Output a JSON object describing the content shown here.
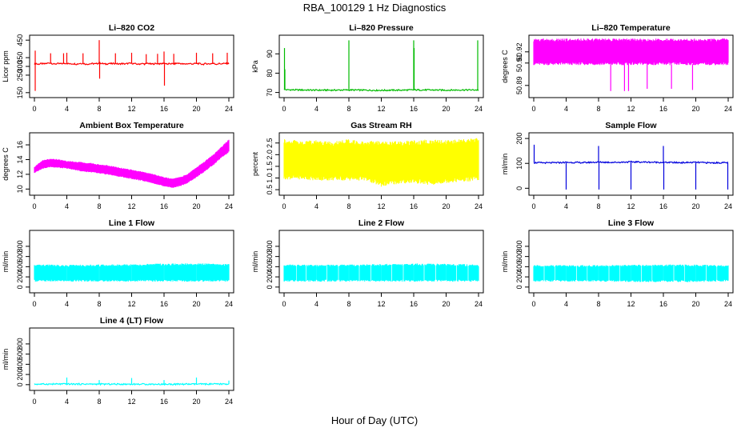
{
  "title": "RBA_100129  1 Hz Diagnostics",
  "x_axis_title": "Hour of Day (UTC)",
  "chart_data": [
    {
      "type": "line",
      "title": "Li–820 CO2",
      "ylabel": "Licor ppm",
      "color": "#ff0000",
      "xlim": [
        0,
        24
      ],
      "ylim": [
        140,
        460
      ],
      "xticks": [
        0,
        4,
        8,
        12,
        16,
        20,
        24
      ],
      "xtick_labels": [
        "0",
        "4",
        "8",
        "12",
        "16",
        "20",
        "24"
      ],
      "yticks": [
        150,
        250,
        300,
        350,
        450
      ],
      "ytick_labels": [
        "150",
        "250",
        "300",
        "350",
        "450"
      ],
      "series": [
        {
          "x": [
            0,
            0.2,
            0.4,
            0.8,
            1.2,
            1.6,
            2.0,
            2.4,
            2.8,
            3.2,
            3.6,
            4.0,
            4.4,
            4.8,
            5.2,
            5.6,
            6.0,
            6.4,
            6.8,
            7.2,
            7.6,
            8.0,
            8.4,
            8.8,
            9.2,
            9.6,
            10.0,
            10.4,
            10.8,
            11.2,
            11.6,
            12.0,
            12.4,
            12.8,
            13.2,
            13.6,
            14.0,
            14.4,
            14.8,
            15.2,
            15.6,
            16.0,
            16.4,
            16.8,
            17.2,
            17.6,
            18.0,
            18.4,
            18.8,
            19.2,
            19.6,
            20.0,
            20.4,
            20.8,
            21.2,
            21.6,
            22.0,
            22.4,
            22.8,
            23.2,
            23.6,
            24.0
          ],
          "y": [
            315,
            318,
            312,
            316,
            314,
            318,
            320,
            313,
            316,
            315,
            317,
            318,
            314,
            316,
            313,
            317,
            318,
            312,
            315,
            316,
            314,
            320,
            316,
            313,
            317,
            315,
            318,
            313,
            316,
            314,
            317,
            318,
            315,
            312,
            316,
            314,
            318,
            313,
            315,
            317,
            314,
            320,
            312,
            316,
            314,
            318,
            317,
            313,
            315,
            316,
            314,
            318,
            315,
            312,
            316,
            314,
            318,
            313,
            316,
            315,
            317,
            316
          ],
          "spikes": [
            {
              "x": 0.1,
              "y": 390
            },
            {
              "x": 0.1,
              "y": 160
            },
            {
              "x": 2.0,
              "y": 375
            },
            {
              "x": 3.6,
              "y": 375
            },
            {
              "x": 4.0,
              "y": 378
            },
            {
              "x": 6.0,
              "y": 375
            },
            {
              "x": 8.0,
              "y": 450
            },
            {
              "x": 8.05,
              "y": 230
            },
            {
              "x": 10.0,
              "y": 375
            },
            {
              "x": 12.0,
              "y": 378
            },
            {
              "x": 13.8,
              "y": 370
            },
            {
              "x": 15.2,
              "y": 372
            },
            {
              "x": 16.0,
              "y": 385
            },
            {
              "x": 16.05,
              "y": 190
            },
            {
              "x": 17.2,
              "y": 372
            },
            {
              "x": 20.0,
              "y": 378
            },
            {
              "x": 22.0,
              "y": 375
            },
            {
              "x": 23.8,
              "y": 378
            }
          ]
        }
      ]
    },
    {
      "type": "line",
      "title": "Li–820 Pressure",
      "ylabel": "kPa",
      "color": "#00bb00",
      "xlim": [
        0,
        24
      ],
      "ylim": [
        69,
        98
      ],
      "xticks": [
        0,
        4,
        8,
        12,
        16,
        20,
        24
      ],
      "xtick_labels": [
        "0",
        "4",
        "8",
        "12",
        "16",
        "20",
        "24"
      ],
      "yticks": [
        70,
        80,
        90
      ],
      "ytick_labels": [
        "70",
        "80",
        "90"
      ],
      "series": [
        {
          "x": [
            0,
            0.3,
            2,
            4,
            6,
            8,
            10,
            12,
            14,
            16,
            18,
            20,
            22,
            24
          ],
          "y": [
            71.6,
            71.4,
            71.3,
            71.2,
            71.2,
            71.3,
            71.2,
            71.1,
            71.2,
            71.3,
            71.3,
            71.2,
            71.3,
            71.3
          ],
          "spikes": [
            {
              "x": 0.05,
              "y": 93
            },
            {
              "x": 0.1,
              "y": 82
            },
            {
              "x": 8.0,
              "y": 97
            },
            {
              "x": 16.0,
              "y": 97
            },
            {
              "x": 16.05,
              "y": 93
            },
            {
              "x": 23.9,
              "y": 97
            }
          ]
        }
      ]
    },
    {
      "type": "area",
      "title": "Li–820 Temperature",
      "ylabel": "degrees C",
      "color": "#ff00ff",
      "xlim": [
        0,
        24
      ],
      "ylim": [
        50.882,
        50.932
      ],
      "xticks": [
        0,
        4,
        8,
        12,
        16,
        20,
        24
      ],
      "xtick_labels": [
        "0",
        "4",
        "8",
        "12",
        "16",
        "20",
        "24"
      ],
      "yticks": [
        50.89,
        50.91,
        50.92
      ],
      "ytick_labels": [
        "50.89",
        "50.91",
        "50.92"
      ],
      "series": [
        {
          "x": [
            0,
            24
          ],
          "y_low": [
            50.909,
            50.909
          ],
          "y_high": [
            50.931,
            50.931
          ],
          "spikes": [
            {
              "x": 9.5,
              "y": 50.885
            },
            {
              "x": 11.2,
              "y": 50.885
            },
            {
              "x": 11.7,
              "y": 50.885
            },
            {
              "x": 14.0,
              "y": 50.887
            },
            {
              "x": 17.0,
              "y": 50.887
            },
            {
              "x": 19.6,
              "y": 50.886
            }
          ]
        }
      ]
    },
    {
      "type": "area",
      "title": "Ambient Box Temperature",
      "ylabel": "degrees C",
      "color": "#ff00ff",
      "xlim": [
        0,
        24
      ],
      "ylim": [
        9.6,
        17.2
      ],
      "xticks": [
        0,
        4,
        8,
        12,
        16,
        20,
        24
      ],
      "xtick_labels": [
        "0",
        "4",
        "8",
        "12",
        "16",
        "20",
        "24"
      ],
      "yticks": [
        10,
        12,
        14,
        16
      ],
      "ytick_labels": [
        "10",
        "12",
        "14",
        "16"
      ],
      "series": [
        {
          "x": [
            0,
            1,
            2,
            3,
            4,
            5,
            6,
            7,
            8,
            9,
            10,
            11,
            12,
            13,
            14,
            15,
            16,
            17,
            18,
            19,
            20,
            21,
            22,
            23,
            24
          ],
          "y_low": [
            12.2,
            12.8,
            13.0,
            12.9,
            12.8,
            12.6,
            12.4,
            12.3,
            12.1,
            12.0,
            11.8,
            11.6,
            11.4,
            11.2,
            11.0,
            10.7,
            10.4,
            10.2,
            10.4,
            10.9,
            11.6,
            12.4,
            13.2,
            14.2,
            15.0
          ],
          "y_high": [
            13.0,
            13.9,
            14.1,
            14.0,
            13.8,
            13.7,
            13.6,
            13.5,
            13.3,
            13.2,
            13.0,
            12.8,
            12.6,
            12.4,
            12.2,
            11.9,
            11.6,
            11.4,
            11.6,
            12.1,
            12.9,
            13.7,
            14.6,
            15.6,
            16.7
          ]
        }
      ]
    },
    {
      "type": "area",
      "title": "Gas Stream RH",
      "ylabel": "percent",
      "color": "#ffff00",
      "xlim": [
        0,
        24
      ],
      "ylim": [
        0.4,
        2.8
      ],
      "xticks": [
        0,
        4,
        8,
        12,
        16,
        20,
        24
      ],
      "xtick_labels": [
        "0",
        "4",
        "8",
        "12",
        "16",
        "20",
        "24"
      ],
      "yticks": [
        0.5,
        1.0,
        1.5,
        2.0,
        2.5
      ],
      "ytick_labels": [
        "0.5",
        "1.0",
        "1.5",
        "2.0",
        "2.5"
      ],
      "series": [
        {
          "x": [
            0,
            2,
            4,
            6,
            8,
            10,
            12,
            14,
            16,
            18,
            20,
            22,
            24
          ],
          "y_low": [
            1.0,
            1.0,
            0.95,
            0.95,
            0.95,
            0.95,
            0.7,
            0.8,
            0.85,
            0.75,
            0.85,
            0.9,
            0.95
          ],
          "y_high": [
            2.6,
            2.55,
            2.55,
            2.5,
            2.6,
            2.5,
            2.55,
            2.5,
            2.55,
            2.6,
            2.55,
            2.6,
            2.65
          ]
        }
      ]
    },
    {
      "type": "line",
      "title": "Sample Flow",
      "ylabel": "ml/min",
      "color": "#0000dd",
      "xlim": [
        0,
        24
      ],
      "ylim": [
        -15,
        210
      ],
      "xticks": [
        0,
        4,
        8,
        12,
        16,
        20,
        24
      ],
      "xtick_labels": [
        "0",
        "4",
        "8",
        "12",
        "16",
        "20",
        "24"
      ],
      "yticks": [
        0,
        100,
        200
      ],
      "ytick_labels": [
        "0",
        "100",
        "200"
      ],
      "series": [
        {
          "x": [
            0,
            2,
            4,
            6,
            8,
            10,
            12,
            14,
            16,
            18,
            20,
            22,
            24
          ],
          "y": [
            103,
            102,
            104,
            103,
            105,
            104,
            106,
            105,
            104,
            103,
            104,
            102,
            103
          ],
          "spikes": [
            {
              "x": 0.05,
              "y": 175
            },
            {
              "x": 4.0,
              "y": -5
            },
            {
              "x": 8.0,
              "y": 170
            },
            {
              "x": 8.05,
              "y": -5
            },
            {
              "x": 12.0,
              "y": -5
            },
            {
              "x": 16.0,
              "y": 170
            },
            {
              "x": 16.05,
              "y": -5
            },
            {
              "x": 20.0,
              "y": -5
            },
            {
              "x": 23.95,
              "y": -5
            }
          ]
        }
      ]
    },
    {
      "type": "area",
      "title": "Line 1 Flow",
      "ylabel": "ml/min",
      "color": "#00ffff",
      "xlim": [
        0,
        24
      ],
      "ylim": [
        -50,
        1050
      ],
      "xticks": [
        0,
        4,
        8,
        12,
        16,
        20,
        24
      ],
      "xtick_labels": [
        "0",
        "4",
        "8",
        "12",
        "16",
        "20",
        "24"
      ],
      "yticks": [
        0,
        200,
        400,
        600,
        800
      ],
      "ytick_labels": [
        "0",
        "200",
        "400",
        "600",
        "800"
      ],
      "series": [
        {
          "x": [
            0,
            4,
            8,
            12,
            16,
            20,
            24
          ],
          "y_low": [
            120,
            120,
            120,
            120,
            120,
            120,
            120
          ],
          "y_high": [
            430,
            425,
            430,
            435,
            450,
            455,
            440
          ],
          "gaps": [
            4,
            8,
            12,
            16,
            20
          ]
        }
      ]
    },
    {
      "type": "area",
      "title": "Line 2 Flow",
      "ylabel": "ml/min",
      "color": "#00ffff",
      "xlim": [
        0,
        24
      ],
      "ylim": [
        -50,
        1050
      ],
      "xticks": [
        0,
        4,
        8,
        12,
        16,
        20,
        24
      ],
      "xtick_labels": [
        "0",
        "4",
        "8",
        "12",
        "16",
        "20",
        "24"
      ],
      "yticks": [
        0,
        200,
        400,
        600,
        800
      ],
      "ytick_labels": [
        "0",
        "200",
        "400",
        "600",
        "800"
      ],
      "series": [
        {
          "x": [
            0,
            4,
            8,
            12,
            16,
            20,
            24
          ],
          "y_low": [
            120,
            120,
            120,
            120,
            120,
            120,
            120
          ],
          "y_high": [
            430,
            425,
            430,
            440,
            450,
            445,
            430
          ],
          "gaps": [
            1.5,
            2.7,
            4,
            5.3,
            6.7,
            8,
            9.3,
            10.7,
            12,
            13.3,
            14.7,
            16,
            17.3,
            18.7,
            20,
            21.3,
            22.7
          ]
        }
      ]
    },
    {
      "type": "area",
      "title": "Line 3 Flow",
      "ylabel": "ml/min",
      "color": "#00ffff",
      "xlim": [
        0,
        24
      ],
      "ylim": [
        -50,
        1050
      ],
      "xticks": [
        0,
        4,
        8,
        12,
        16,
        20,
        24
      ],
      "xtick_labels": [
        "0",
        "4",
        "8",
        "12",
        "16",
        "20",
        "24"
      ],
      "yticks": [
        0,
        200,
        400,
        600,
        800
      ],
      "ytick_labels": [
        "0",
        "200",
        "400",
        "600",
        "800"
      ],
      "series": [
        {
          "x": [
            0,
            4,
            8,
            12,
            16,
            20,
            24
          ],
          "y_low": [
            120,
            120,
            120,
            110,
            110,
            110,
            120
          ],
          "y_high": [
            420,
            420,
            420,
            425,
            430,
            430,
            420
          ],
          "gaps": [
            1.3,
            2.6,
            4,
            5.3,
            6.6,
            8,
            9.3,
            10.6,
            12,
            13.3,
            14.6,
            16,
            17.3,
            18.6,
            20,
            21.3,
            22.6
          ]
        }
      ]
    },
    {
      "type": "line",
      "title": "Line 4 (LT) Flow",
      "ylabel": "ml/min",
      "color": "#00ffff",
      "xlim": [
        0,
        24
      ],
      "ylim": [
        -50,
        1050
      ],
      "xticks": [
        0,
        4,
        8,
        12,
        16,
        20,
        24
      ],
      "xtick_labels": [
        "0",
        "4",
        "8",
        "12",
        "16",
        "20",
        "24"
      ],
      "yticks": [
        0,
        200,
        400,
        600,
        800
      ],
      "ytick_labels": [
        "0",
        "200",
        "400",
        "600",
        "800"
      ],
      "series": [
        {
          "x": [
            0,
            4,
            8,
            12,
            16,
            20,
            24
          ],
          "y": [
            10,
            12,
            10,
            10,
            8,
            10,
            12
          ],
          "spikes": [
            {
              "x": 4.0,
              "y": 140
            },
            {
              "x": 8.0,
              "y": 90
            },
            {
              "x": 12.0,
              "y": 130
            },
            {
              "x": 16.0,
              "y": 90
            },
            {
              "x": 20.0,
              "y": 140
            },
            {
              "x": 24.0,
              "y": 80
            }
          ]
        }
      ]
    }
  ]
}
